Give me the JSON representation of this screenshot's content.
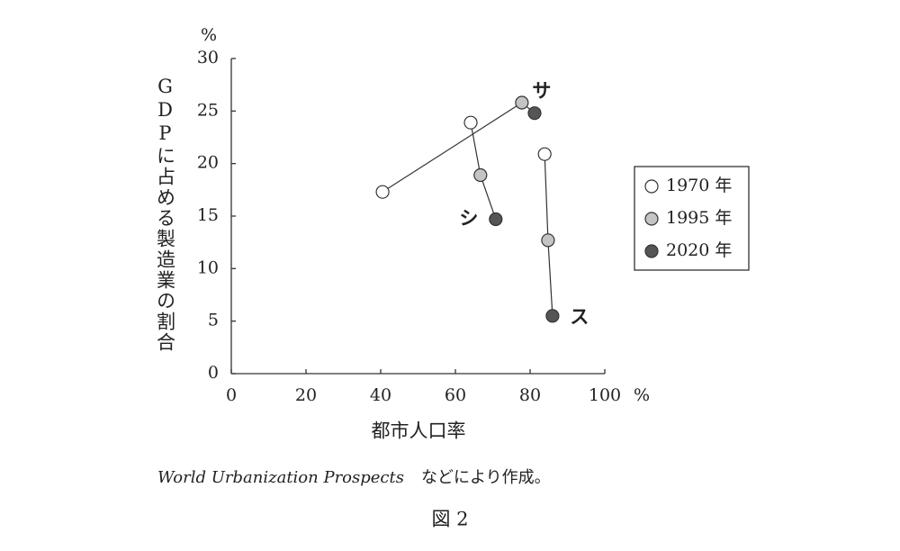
{
  "chart_data": {
    "type": "scatter",
    "y_unit": "%",
    "x_unit": "%",
    "y_label": "GDPに占める製造業の割合",
    "x_label": "都市人口率",
    "xlim": [
      0,
      100
    ],
    "xticks": [
      0,
      20,
      40,
      60,
      80,
      100
    ],
    "ylim": [
      0,
      30
    ],
    "yticks": [
      0,
      5,
      10,
      15,
      20,
      25,
      30
    ],
    "years": [
      {
        "name": "1970 年",
        "color": "#ffffff"
      },
      {
        "name": "1995 年",
        "color": "#c4c4c4"
      },
      {
        "name": "2020 年",
        "color": "#555555"
      }
    ],
    "series": [
      {
        "name": "サ",
        "x": [
          40.5,
          77.8,
          81.2
        ],
        "y": [
          17.3,
          25.8,
          24.8
        ]
      },
      {
        "name": "シ",
        "x": [
          64.1,
          66.7,
          70.8
        ],
        "y": [
          23.9,
          18.9,
          14.7
        ]
      },
      {
        "name": "ス",
        "x": [
          83.9,
          84.8,
          86.0
        ],
        "y": [
          20.9,
          12.7,
          5.5
        ]
      }
    ]
  },
  "source": {
    "italic": "World Urbanization Prospects",
    "rest": "などにより作成。"
  },
  "caption": "図 2"
}
